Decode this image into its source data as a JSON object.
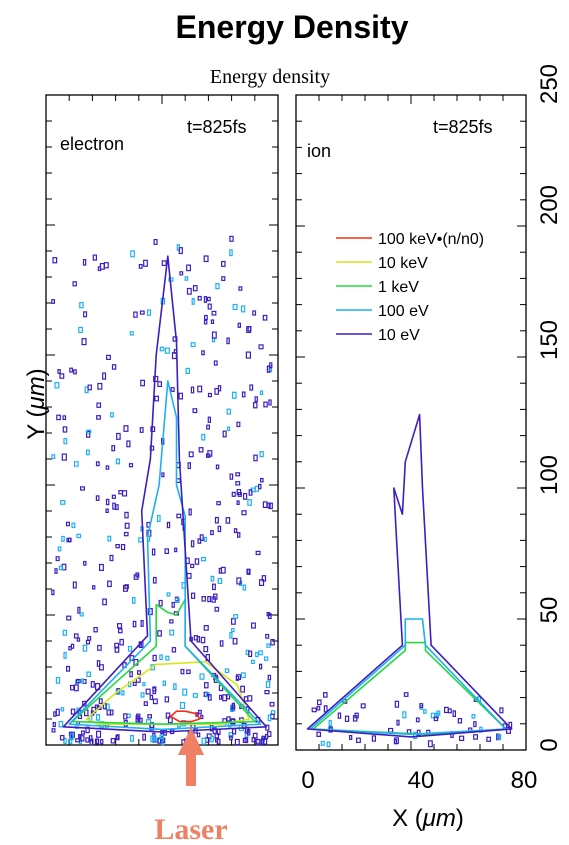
{
  "figure_title": "Energy Density",
  "plot_title": "Energy density",
  "y_axis": {
    "label_prefix": "Y (",
    "label_unit": "μm",
    "label_suffix": ")",
    "ticks": [
      "0",
      "50",
      "100",
      "150",
      "200",
      "250"
    ]
  },
  "x_axis": {
    "label_prefix": "X (",
    "label_unit": "μm",
    "label_suffix": ")",
    "ticks": [
      "0",
      "40",
      "80"
    ]
  },
  "annotation": {
    "laser_label": "Laser",
    "laser_color": "#f08064"
  },
  "legend": [
    {
      "label": "100 keV•(n/n0)",
      "color": "#ff2a10"
    },
    {
      "label": "10 keV",
      "color": "#d6e61a"
    },
    {
      "label": "1 keV",
      "color": "#25d940"
    },
    {
      "label": "100 eV",
      "color": "#1eb0f0"
    },
    {
      "label": "10 eV",
      "color": "#3e1ec0"
    }
  ],
  "chart_data": [
    {
      "type": "contour",
      "panel_label": "electron",
      "time_label": "t=825fs",
      "xlim": [
        0,
        80
      ],
      "ylim": [
        0,
        250
      ],
      "levels": [
        "100 keV•(n/n0)",
        "10 keV",
        "1 keV",
        "100 eV",
        "10 eV"
      ],
      "contours": [
        {
          "level": "100 keV•(n/n0)",
          "color": "#ff2a10",
          "closed": true,
          "x": [
            43,
            45,
            48,
            52,
            53,
            50,
            46,
            43
          ],
          "y": [
            11,
            13,
            13,
            12,
            10,
            9,
            9,
            11
          ]
        },
        {
          "level": "10 keV",
          "color": "#d6e61a",
          "closed": true,
          "x": [
            14,
            24,
            38,
            55,
            66,
            70,
            60,
            44,
            28,
            18,
            14
          ],
          "y": [
            10,
            20,
            31,
            32,
            23,
            10,
            8,
            8,
            8,
            8,
            10
          ]
        },
        {
          "level": "1 keV",
          "color": "#25d940",
          "closed": true,
          "x": [
            9,
            38,
            38,
            42,
            45,
            48,
            48,
            72,
            40,
            9
          ],
          "y": [
            9,
            38,
            54,
            51,
            50,
            56,
            38,
            9,
            8,
            9
          ]
        },
        {
          "level": "100 eV",
          "color": "#1eb0f0",
          "closed": true,
          "x": [
            8,
            36,
            35,
            39,
            42,
            45,
            45,
            48,
            48,
            74,
            40,
            8
          ],
          "y": [
            8,
            40,
            80,
            100,
            140,
            126,
            100,
            88,
            38,
            8,
            6,
            8
          ]
        },
        {
          "level": "10 eV",
          "color": "#3e1ec0",
          "closed": true,
          "x": [
            6,
            35,
            33,
            36,
            38,
            42,
            45,
            46,
            50,
            76,
            40,
            6
          ],
          "y": [
            7,
            42,
            90,
            110,
            150,
            188,
            155,
            110,
            40,
            7,
            5,
            7
          ]
        }
      ]
    },
    {
      "type": "contour",
      "panel_label": "ion",
      "time_label": "t=825fs",
      "xlim": [
        0,
        80
      ],
      "ylim": [
        0,
        250
      ],
      "levels": [
        "100 keV•(n/n0)",
        "10 keV",
        "1 keV",
        "100 eV",
        "10 eV"
      ],
      "contours": [
        {
          "level": "1 keV",
          "color": "#25d940",
          "closed": true,
          "x": [
            6,
            38,
            38,
            45,
            45,
            73,
            45,
            6
          ],
          "y": [
            8,
            38,
            41,
            41,
            38,
            8,
            6,
            8
          ]
        },
        {
          "level": "100 eV",
          "color": "#1eb0f0",
          "closed": true,
          "x": [
            5,
            38,
            38,
            44,
            45,
            73,
            40,
            5
          ],
          "y": [
            8,
            40,
            50,
            50,
            40,
            8,
            6,
            8
          ]
        },
        {
          "level": "10 eV",
          "color": "#3e1ec0",
          "closed": true,
          "x": [
            4,
            37,
            35,
            34,
            37,
            38,
            43,
            44,
            47,
            75,
            40,
            4
          ],
          "y": [
            8,
            40,
            80,
            100,
            90,
            110,
            128,
            100,
            40,
            8,
            5,
            8
          ]
        }
      ]
    }
  ]
}
